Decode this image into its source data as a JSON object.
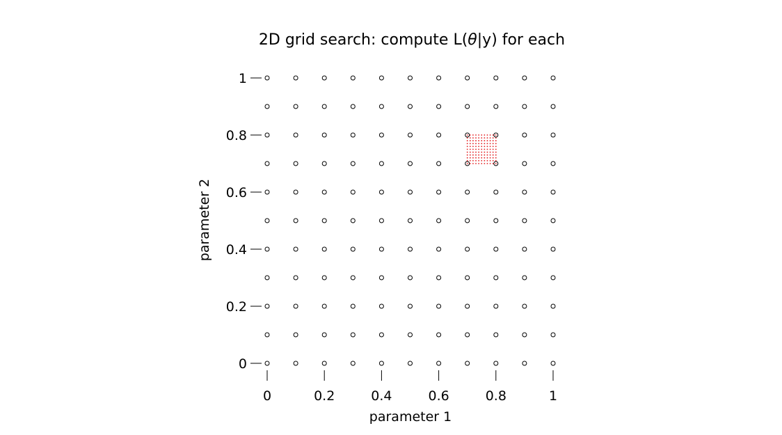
{
  "chart_data": {
    "type": "scatter",
    "title": "2D grid search: compute L(θ|y) for each",
    "title_parts": {
      "prefix": "2D grid search: compute L(",
      "theta": "θ",
      "suffix": "|y) for each"
    },
    "xlabel": "parameter 1",
    "ylabel": "parameter 2",
    "xlim": [
      0,
      1
    ],
    "ylim": [
      0,
      1
    ],
    "x_ticks": [
      0,
      0.2,
      0.4,
      0.6,
      0.8,
      1
    ],
    "x_tick_labels": [
      "0",
      "0.2",
      "0.4",
      "0.6",
      "0.8",
      "1"
    ],
    "y_ticks": [
      0,
      0.2,
      0.4,
      0.6,
      0.8,
      1
    ],
    "y_tick_labels": [
      "0",
      "0.2",
      "0.4",
      "0.6",
      "0.8",
      "1"
    ],
    "grid": false,
    "series": [
      {
        "marker": "open-circle",
        "color": "#000000",
        "grid_x": [
          0,
          0.1,
          0.2,
          0.3,
          0.4,
          0.5,
          0.6,
          0.7,
          0.8,
          0.9,
          1.0
        ],
        "grid_y": [
          0,
          0.1,
          0.2,
          0.3,
          0.4,
          0.5,
          0.6,
          0.7,
          0.8,
          0.9,
          1.0
        ]
      },
      {
        "marker": "dot",
        "color": "#e31a1c",
        "x_range": [
          0.7,
          0.8
        ],
        "y_range": [
          0.7,
          0.8
        ],
        "step": 0.01
      }
    ]
  }
}
